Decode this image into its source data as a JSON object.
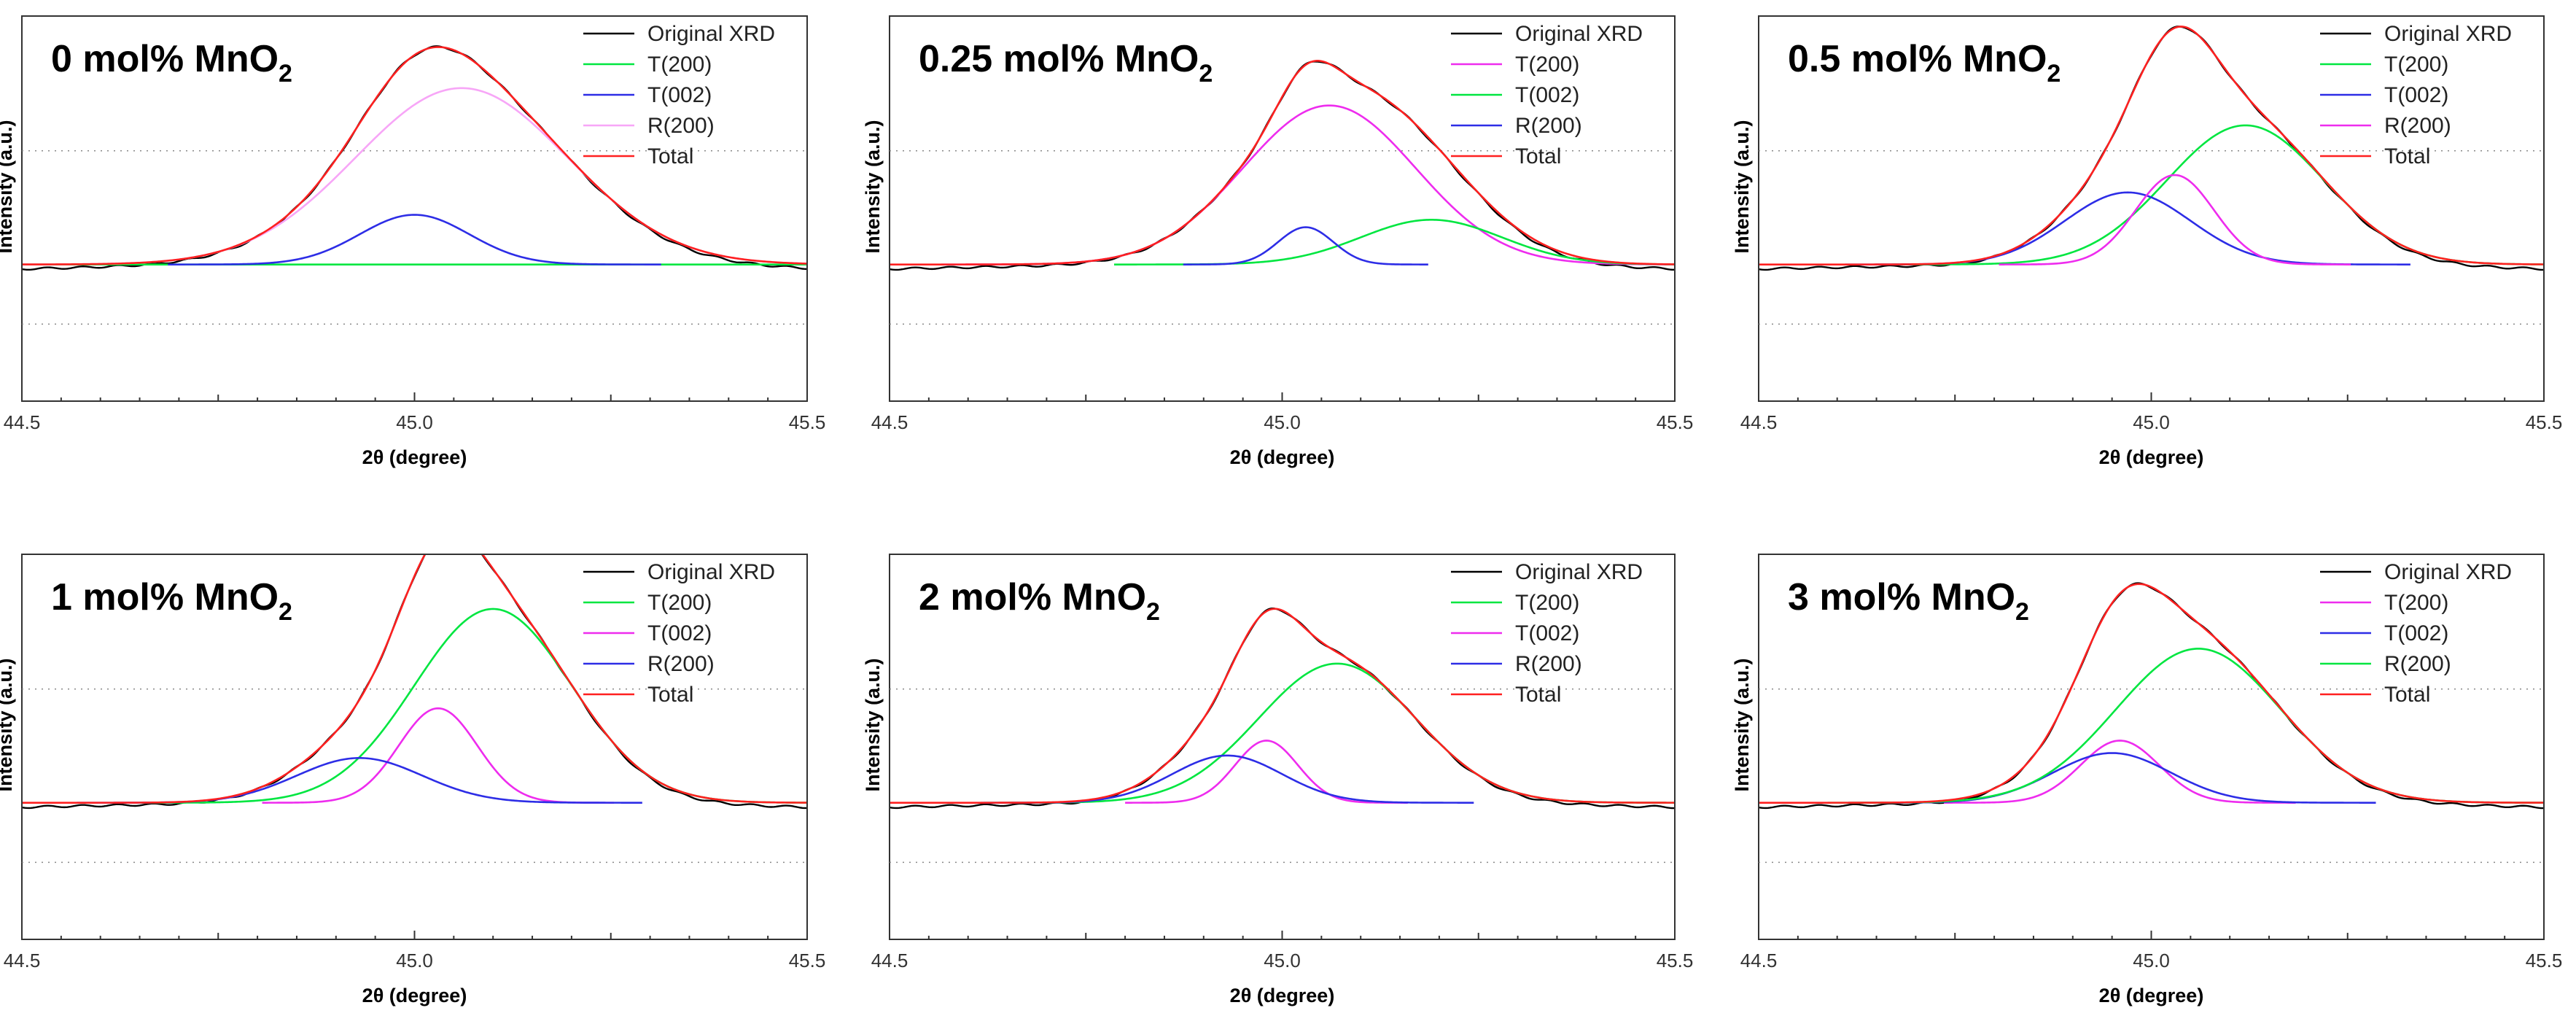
{
  "chart_data": [
    {
      "type": "line",
      "title": "0 mol% MnO2",
      "title_main": "0 mol% MnO",
      "title_sub": "2",
      "xlabel": "2θ (degree)",
      "ylabel": "Intensity (a.u.)",
      "xlim": [
        44.5,
        45.5
      ],
      "ylim": [
        -0.55,
        1.0
      ],
      "xticks": [
        44.5,
        45.0,
        45.5
      ],
      "xtick_labels": [
        "44.5",
        "45.0",
        "45.5"
      ],
      "legend_position": "top-right",
      "grid": true,
      "series": [
        {
          "name": "Original XRD",
          "color": "#000000",
          "kind": "original"
        },
        {
          "name": "T(200)",
          "color": "#00e640",
          "kind": "peak",
          "center": 45.0,
          "amp": 0.0,
          "width": 0.08
        },
        {
          "name": "T(002)",
          "color": "#2d2de6",
          "kind": "peak",
          "center": 45.0,
          "amp": 0.2,
          "width": 0.07
        },
        {
          "name": "R(200)",
          "color": "#f7a6f7",
          "kind": "peak",
          "center": 45.06,
          "amp": 0.71,
          "width": 0.135
        },
        {
          "name": "Total",
          "color": "#ff2020",
          "kind": "total"
        }
      ]
    },
    {
      "type": "line",
      "title": "0.25 mol% MnO2",
      "title_main": "0.25 mol% MnO",
      "title_sub": "2",
      "xlabel": "2θ (degree)",
      "ylabel": "Intensity (a.u.)",
      "xlim": [
        44.5,
        45.5
      ],
      "ylim": [
        -0.55,
        1.0
      ],
      "xticks": [
        44.5,
        45.0,
        45.5
      ],
      "xtick_labels": [
        "44.5",
        "45.0",
        "45.5"
      ],
      "legend_position": "top-right",
      "grid": true,
      "series": [
        {
          "name": "Original XRD",
          "color": "#000000",
          "kind": "original"
        },
        {
          "name": "T(200)",
          "color": "#ee2cee",
          "kind": "peak",
          "center": 45.06,
          "amp": 0.64,
          "width": 0.11
        },
        {
          "name": "T(002)",
          "color": "#00e640",
          "kind": "peak",
          "center": 45.19,
          "amp": 0.18,
          "width": 0.09
        },
        {
          "name": "R(200)",
          "color": "#2d2de6",
          "kind": "peak",
          "center": 45.03,
          "amp": 0.15,
          "width": 0.035
        },
        {
          "name": "Total",
          "color": "#ff2020",
          "kind": "total"
        }
      ]
    },
    {
      "type": "line",
      "title": "0.5 mol% MnO2",
      "title_main": "0.5 mol% MnO",
      "title_sub": "2",
      "xlabel": "2θ (degree)",
      "ylabel": "Intensity (a.u.)",
      "xlim": [
        44.5,
        45.5
      ],
      "ylim": [
        -0.55,
        1.0
      ],
      "xticks": [
        44.5,
        45.0,
        45.5
      ],
      "xtick_labels": [
        "44.5",
        "45.0",
        "45.5"
      ],
      "legend_position": "top-right",
      "grid": true,
      "series": [
        {
          "name": "Original XRD",
          "color": "#000000",
          "kind": "original"
        },
        {
          "name": "T(200)",
          "color": "#00e640",
          "kind": "peak",
          "center": 45.12,
          "amp": 0.56,
          "width": 0.1
        },
        {
          "name": "T(002)",
          "color": "#2d2de6",
          "kind": "peak",
          "center": 44.97,
          "amp": 0.29,
          "width": 0.08
        },
        {
          "name": "R(200)",
          "color": "#ee2cee",
          "kind": "peak",
          "center": 45.03,
          "amp": 0.36,
          "width": 0.05
        },
        {
          "name": "Total",
          "color": "#ff2020",
          "kind": "total"
        }
      ]
    },
    {
      "type": "line",
      "title": "1 mol% MnO2",
      "title_main": "1 mol% MnO",
      "title_sub": "2",
      "xlabel": "2θ (degree)",
      "ylabel": "Intensity (a.u.)",
      "xlim": [
        44.5,
        45.5
      ],
      "ylim": [
        -0.55,
        1.0
      ],
      "xticks": [
        44.5,
        45.0,
        45.5
      ],
      "xtick_labels": [
        "44.5",
        "45.0",
        "45.5"
      ],
      "legend_position": "top-right",
      "grid": true,
      "series": [
        {
          "name": "Original XRD",
          "color": "#000000",
          "kind": "original"
        },
        {
          "name": "T(200)",
          "color": "#00e640",
          "kind": "peak",
          "center": 45.1,
          "amp": 0.78,
          "width": 0.1
        },
        {
          "name": "T(002)",
          "color": "#ee2cee",
          "kind": "peak",
          "center": 45.03,
          "amp": 0.38,
          "width": 0.05
        },
        {
          "name": "R(200)",
          "color": "#2d2de6",
          "kind": "peak",
          "center": 44.93,
          "amp": 0.18,
          "width": 0.08
        },
        {
          "name": "Total",
          "color": "#ff2020",
          "kind": "total"
        }
      ]
    },
    {
      "type": "line",
      "title": "2 mol% MnO2",
      "title_main": "2 mol% MnO",
      "title_sub": "2",
      "xlabel": "2θ (degree)",
      "ylabel": "Intensity (a.u.)",
      "xlim": [
        44.5,
        45.5
      ],
      "ylim": [
        -0.55,
        1.0
      ],
      "xticks": [
        44.5,
        45.0,
        45.5
      ],
      "xtick_labels": [
        "44.5",
        "45.0",
        "45.5"
      ],
      "legend_position": "top-right",
      "grid": true,
      "series": [
        {
          "name": "Original XRD",
          "color": "#000000",
          "kind": "original"
        },
        {
          "name": "T(200)",
          "color": "#00e640",
          "kind": "peak",
          "center": 45.07,
          "amp": 0.56,
          "width": 0.1
        },
        {
          "name": "T(002)",
          "color": "#ee2cee",
          "kind": "peak",
          "center": 44.98,
          "amp": 0.25,
          "width": 0.04
        },
        {
          "name": "R(200)",
          "color": "#2d2de6",
          "kind": "peak",
          "center": 44.93,
          "amp": 0.19,
          "width": 0.07
        },
        {
          "name": "Total",
          "color": "#ff2020",
          "kind": "total"
        }
      ]
    },
    {
      "type": "line",
      "title": "3 mol% MnO2",
      "title_main": "3 mol% MnO",
      "title_sub": "2",
      "xlabel": "2θ (degree)",
      "ylabel": "Intensity (a.u.)",
      "xlim": [
        44.5,
        45.5
      ],
      "ylim": [
        -0.55,
        1.0
      ],
      "xticks": [
        44.5,
        45.0,
        45.5
      ],
      "xtick_labels": [
        "44.5",
        "45.0",
        "45.5"
      ],
      "legend_position": "top-right",
      "grid": true,
      "series": [
        {
          "name": "Original XRD",
          "color": "#000000",
          "kind": "original"
        },
        {
          "name": "T(200)",
          "color": "#ee2cee",
          "kind": "peak",
          "center": 44.96,
          "amp": 0.25,
          "width": 0.05
        },
        {
          "name": "T(002)",
          "color": "#2d2de6",
          "kind": "peak",
          "center": 44.95,
          "amp": 0.2,
          "width": 0.075
        },
        {
          "name": "R(200)",
          "color": "#00e640",
          "kind": "peak",
          "center": 45.06,
          "amp": 0.62,
          "width": 0.105
        },
        {
          "name": "Total",
          "color": "#ff2020",
          "kind": "total"
        }
      ]
    }
  ]
}
